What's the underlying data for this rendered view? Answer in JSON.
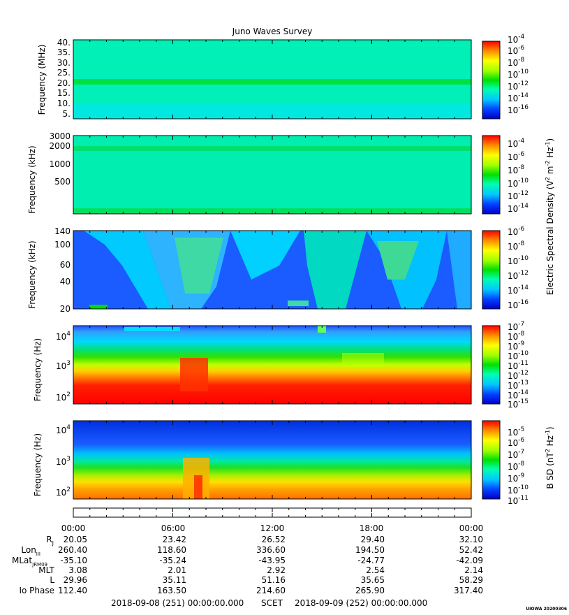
{
  "chart_data": {
    "title": "Juno Waves Survey",
    "type": "heatmap",
    "panels": [
      {
        "ylabel": "Frequency (MHz)",
        "yticks": [
          "40.",
          "35.",
          "30.",
          "25.",
          "20.",
          "15.",
          "10.",
          "5."
        ],
        "colorbar_ticks": [
          "10-4",
          "10-6",
          "10-8",
          "10-10",
          "10-12",
          "10-14",
          "10-16"
        ],
        "colorbar_label": ""
      },
      {
        "ylabel": "Frequency (kHz)",
        "yticks": [
          "3000",
          "2000",
          "1000",
          "500"
        ],
        "colorbar_ticks": [
          "10-4",
          "10-6",
          "10-8",
          "10-10",
          "10-12",
          "10-14"
        ],
        "colorbar_label": "Electric Spectral Density (V2 m-2 Hz-1)"
      },
      {
        "ylabel": "Frequency (kHz)",
        "yticks": [
          "140",
          "100",
          "60",
          "40",
          "20"
        ],
        "colorbar_ticks": [
          "10-6",
          "10-8",
          "10-10",
          "10-12",
          "10-14",
          "10-16"
        ],
        "colorbar_label": ""
      },
      {
        "ylabel": "Frequency (Hz)",
        "yticks": [
          "104",
          "103",
          "102"
        ],
        "colorbar_ticks": [
          "10-7",
          "10-8",
          "10-9",
          "10-10",
          "10-11",
          "10-12",
          "10-13",
          "10-14",
          "10-15"
        ],
        "colorbar_label": ""
      },
      {
        "ylabel": "Frequency (Hz)",
        "yticks": [
          "104",
          "103",
          "102"
        ],
        "colorbar_ticks": [
          "10-5",
          "10-6",
          "10-7",
          "10-8",
          "10-9",
          "10-10",
          "10-11"
        ],
        "colorbar_label": "B SD (nT2 Hz-1)"
      }
    ],
    "time_ticks": [
      "00:00",
      "06:00",
      "12:00",
      "18:00",
      "00:00"
    ],
    "ephemeris": [
      {
        "label": "RJ",
        "values": [
          "20.05",
          "23.42",
          "26.52",
          "29.40",
          "32.10"
        ]
      },
      {
        "label": "LonIII",
        "values": [
          "260.40",
          "118.60",
          "336.60",
          "194.50",
          "52.42"
        ]
      },
      {
        "label": "MLatJRM09",
        "values": [
          "-35.10",
          "-35.24",
          "-43.95",
          "-24.77",
          "-42.09"
        ]
      },
      {
        "label": "MLT",
        "values": [
          "3.08",
          "2.01",
          "2.92",
          "2.54",
          "2.14"
        ]
      },
      {
        "label": "L",
        "values": [
          "29.96",
          "35.11",
          "51.16",
          "35.65",
          "58.29"
        ]
      },
      {
        "label": "Io Phase",
        "values": [
          "112.40",
          "163.50",
          "214.60",
          "265.90",
          "317.40"
        ]
      }
    ],
    "footer": {
      "start": "2018-09-08 (251) 00:00:00.000",
      "middle": "SCET",
      "end": "2018-09-09 (252) 00:00:00.000"
    },
    "stamp": "UIOWA 20200306"
  }
}
